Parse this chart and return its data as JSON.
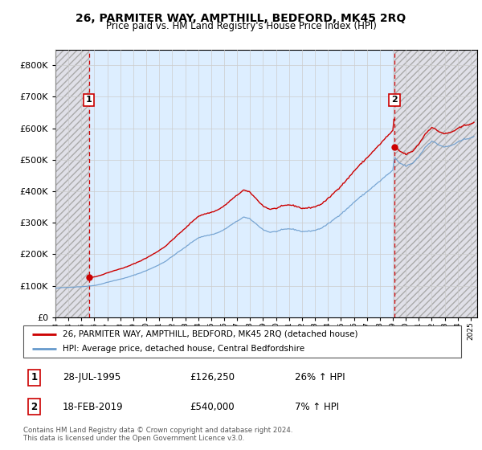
{
  "title": "26, PARMITER WAY, AMPTHILL, BEDFORD, MK45 2RQ",
  "subtitle": "Price paid vs. HM Land Registry's House Price Index (HPI)",
  "sale1_price": 126250,
  "sale1_label": "1",
  "sale2_price": 540000,
  "sale2_label": "2",
  "sale1_year": 1995.583,
  "sale2_year": 2019.125,
  "ylim": [
    0,
    850000
  ],
  "yticks": [
    0,
    100000,
    200000,
    300000,
    400000,
    500000,
    600000,
    700000,
    800000
  ],
  "xlim_start": 1993.0,
  "xlim_end": 2025.5,
  "legend_line1": "26, PARMITER WAY, AMPTHILL, BEDFORD, MK45 2RQ (detached house)",
  "legend_line2": "HPI: Average price, detached house, Central Bedfordshire",
  "footer": "Contains HM Land Registry data © Crown copyright and database right 2024.\nThis data is licensed under the Open Government Licence v3.0.",
  "line_color_red": "#cc0000",
  "line_color_blue": "#6699cc",
  "grid_color": "#cccccc",
  "bg_plot": "#ddeeff",
  "bg_hatch_face": "#e0e0e8"
}
